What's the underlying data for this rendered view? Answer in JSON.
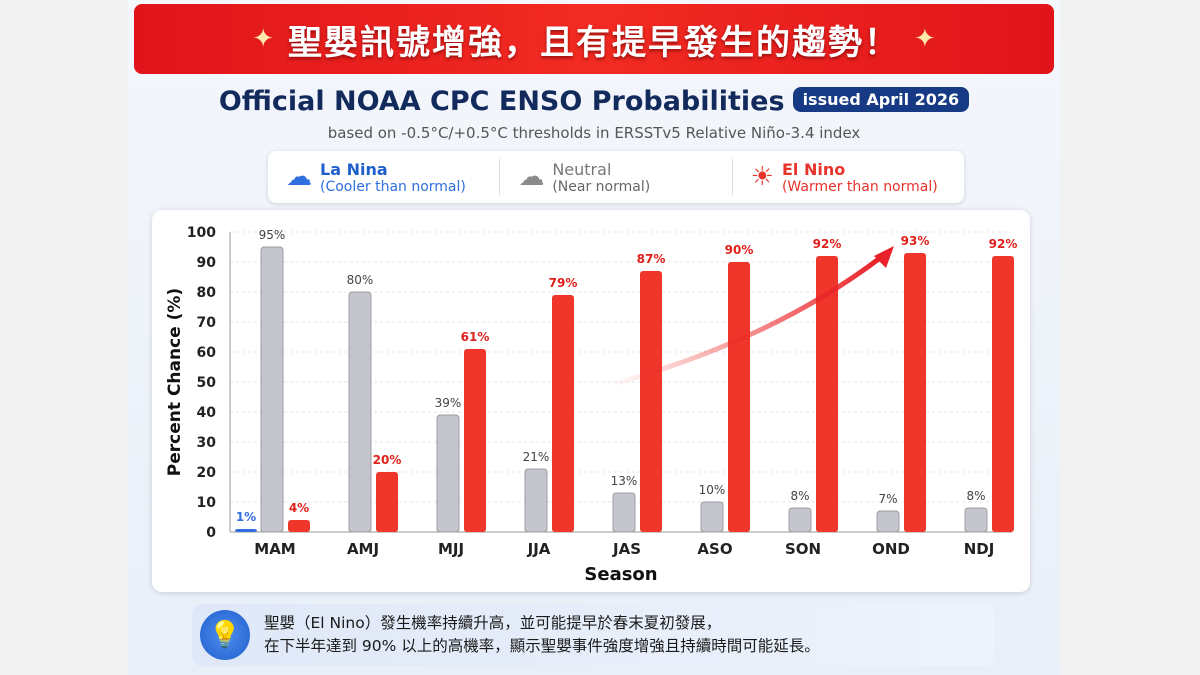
{
  "banner": {
    "title": "聖嬰訊號增強，且有提早發生的趨勢！"
  },
  "header": {
    "title": "Official NOAA CPC ENSO Probabilities",
    "badge": "issued April 2026",
    "subtitle": "based on -0.5°C/+0.5°C thresholds in ERSSTv5 Relative Niño-3.4 index"
  },
  "legend": [
    {
      "name": "La Nina",
      "desc": "(Cooler than normal)",
      "color": "#2f6fe0",
      "icon": "rain-cloud-icon"
    },
    {
      "name": "Neutral",
      "desc": "(Near normal)",
      "color": "#777777",
      "icon": "cloud-icon"
    },
    {
      "name": "El Nino",
      "desc": "(Warmer than normal)",
      "color": "#e8332a",
      "icon": "sun-icon"
    }
  ],
  "chart_data": {
    "type": "bar",
    "xlabel": "Season",
    "ylabel": "Percent Chance (%)",
    "ylim": [
      0,
      100
    ],
    "yticks": [
      0,
      10,
      20,
      30,
      40,
      50,
      60,
      70,
      80,
      90,
      100
    ],
    "grid": true,
    "categories": [
      "MAM",
      "AMJ",
      "MJJ",
      "JJA",
      "JAS",
      "ASO",
      "SON",
      "OND",
      "NDJ"
    ],
    "series": [
      {
        "name": "La Nina",
        "color": "#2f6fe0",
        "values": [
          1,
          null,
          null,
          null,
          null,
          null,
          null,
          null,
          null
        ]
      },
      {
        "name": "Neutral",
        "color": "#c4c6cc",
        "values": [
          95,
          80,
          39,
          21,
          13,
          10,
          8,
          7,
          8
        ]
      },
      {
        "name": "El Nino",
        "color": "#f0352b",
        "values": [
          4,
          20,
          61,
          79,
          87,
          90,
          92,
          93,
          92
        ]
      }
    ],
    "annotation": "upward trend arrow from JAS to OND"
  },
  "note": {
    "line1": "聖嬰（El Nino）發生機率持續升高，並可能提早於春末夏初發展，",
    "line2": "在下半年達到 90% 以上的高機率，顯示聖嬰事件強度增強且持續時間可能延長。",
    "icon": "lightbulb-icon"
  }
}
